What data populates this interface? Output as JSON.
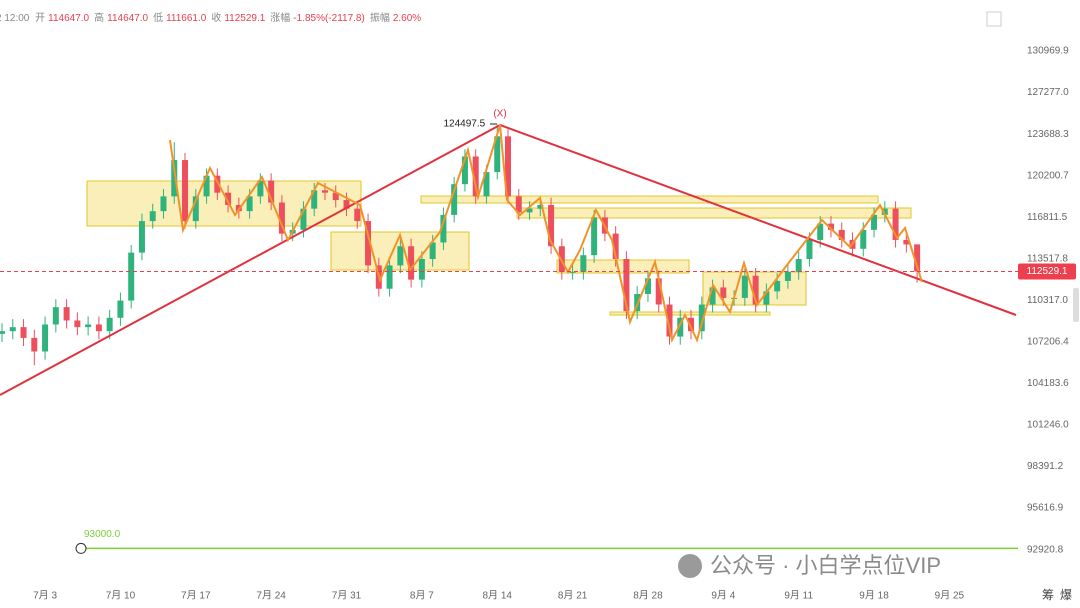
{
  "header": {
    "time": "2 12:00",
    "items": [
      {
        "label": "开",
        "value": "114647.0"
      },
      {
        "label": "高",
        "value": "114647.0"
      },
      {
        "label": "低",
        "value": "111661.0"
      },
      {
        "label": "收",
        "value": "112529.1"
      },
      {
        "label": "涨幅",
        "value": "-1.85%(-2117.8)"
      },
      {
        "label": "振幅",
        "value": "2.60%"
      }
    ]
  },
  "watermark": "公众号 · 小白学点位VIP",
  "corner_buttons": [
    "筹",
    "爆"
  ],
  "chart_data": {
    "type": "candlestick",
    "log_scale": true,
    "grid": false,
    "up_color": "#2fb37c",
    "down_color": "#ee4f5c",
    "ylim": [
      91000,
      135650
    ],
    "yticks": [
      130969.9,
      {
        "value": 127277,
        "label": "127277.0"
      },
      123688.3,
      120200.7,
      116811.5,
      113517.8,
      {
        "value": 110317,
        "label": "110317.0"
      },
      107206.4,
      104183.6,
      {
        "value": 101246,
        "label": "101246.0"
      },
      98391.2,
      95616.9,
      92920.8
    ],
    "categories": [
      null,
      null,
      null,
      null,
      "7月 3",
      null,
      null,
      null,
      null,
      null,
      null,
      "7月 10",
      null,
      null,
      null,
      null,
      null,
      null,
      "7月 17",
      null,
      null,
      null,
      null,
      null,
      null,
      "7月 24",
      null,
      null,
      null,
      null,
      null,
      null,
      "7月 31",
      null,
      null,
      null,
      null,
      null,
      null,
      "8月 7",
      null,
      null,
      null,
      null,
      null,
      null,
      "8月 14",
      null,
      null,
      null,
      null,
      null,
      null,
      "8月 21",
      null,
      null,
      null,
      null,
      null,
      null,
      "8月 28",
      null,
      null,
      null,
      null,
      null,
      null,
      "9月 4",
      null,
      null,
      null,
      null,
      null,
      null,
      "9月 11",
      null,
      null,
      null,
      null,
      null,
      null,
      "9月 18",
      null,
      null,
      null,
      null,
      null,
      null,
      "9月 25",
      null,
      null,
      null,
      null,
      null,
      null
    ],
    "open": [
      107800,
      108000,
      108300,
      107500,
      106500,
      108500,
      109800,
      108800,
      108300,
      108500,
      108000,
      109000,
      110300,
      114000,
      116500,
      117300,
      118500,
      121500,
      116500,
      118500,
      120200,
      118800,
      117800,
      117300,
      118500,
      119800,
      118000,
      115500,
      115800,
      117500,
      119000,
      118800,
      118200,
      117500,
      116500,
      113000,
      111200,
      113000,
      114500,
      111900,
      113500,
      114800,
      117000,
      119500,
      121800,
      118500,
      120500,
      123500,
      118500,
      117200,
      117500,
      117800,
      114500,
      112500,
      112500,
      113800,
      116800,
      115500,
      113500,
      109500,
      110800,
      112000,
      110000,
      107600,
      109000,
      108000,
      110000,
      111300,
      110500,
      110500,
      112200,
      110000,
      111000,
      111800,
      112500,
      113500,
      115000,
      116300,
      115800,
      115000,
      114300,
      115800,
      117000,
      117500,
      115000,
      114647,
      null,
      null,
      null,
      null,
      null,
      null,
      null,
      null,
      null
    ],
    "high": [
      108600,
      108900,
      108900,
      108100,
      109100,
      110400,
      110400,
      109400,
      109100,
      109100,
      109600,
      110900,
      114600,
      117100,
      117900,
      119100,
      123000,
      122100,
      119100,
      120800,
      120800,
      119400,
      118400,
      119100,
      120400,
      120400,
      118600,
      116400,
      118100,
      119600,
      119600,
      119400,
      118800,
      118100,
      117100,
      113600,
      113600,
      115100,
      115100,
      114100,
      115400,
      117600,
      120100,
      122400,
      122400,
      121100,
      124497.5,
      124100,
      119100,
      118100,
      118400,
      118400,
      115100,
      113100,
      114400,
      117400,
      117400,
      116100,
      114100,
      111400,
      112600,
      112600,
      110600,
      109600,
      109600,
      110600,
      111900,
      111900,
      111100,
      112800,
      112800,
      111600,
      112400,
      113100,
      114100,
      115600,
      116900,
      116900,
      116400,
      115600,
      116400,
      117600,
      118100,
      118100,
      115600,
      114647,
      null,
      null,
      null,
      null,
      null,
      null,
      null,
      null,
      null
    ],
    "low": [
      107200,
      107400,
      106900,
      105500,
      105900,
      107900,
      108200,
      107700,
      107700,
      107400,
      107400,
      108400,
      109700,
      113400,
      115900,
      116700,
      117900,
      115900,
      115900,
      117900,
      118200,
      117200,
      116700,
      116700,
      117900,
      117400,
      114900,
      114900,
      115200,
      116900,
      118200,
      117600,
      116900,
      115900,
      112400,
      110600,
      110600,
      112400,
      111300,
      111300,
      112900,
      114200,
      116400,
      118900,
      117900,
      117900,
      119900,
      117900,
      116600,
      116600,
      116900,
      113900,
      111900,
      111900,
      111900,
      113200,
      114900,
      112900,
      108900,
      108900,
      110200,
      109400,
      107000,
      107000,
      107400,
      107400,
      109400,
      109900,
      109900,
      109900,
      109400,
      109400,
      110400,
      111200,
      111900,
      112900,
      114400,
      115200,
      114400,
      113700,
      113700,
      115200,
      116400,
      114400,
      114000,
      111661,
      null,
      null,
      null,
      null,
      null,
      null,
      null,
      null,
      null
    ],
    "close": [
      108000,
      108300,
      107500,
      106500,
      108500,
      109800,
      108800,
      108300,
      108500,
      108000,
      109000,
      110300,
      114000,
      116500,
      117300,
      118500,
      121500,
      116500,
      118500,
      120200,
      118800,
      117800,
      117300,
      118500,
      119800,
      118000,
      115500,
      115800,
      117500,
      119000,
      118800,
      118200,
      117500,
      116500,
      113000,
      111200,
      113000,
      114500,
      111900,
      113500,
      114800,
      117000,
      119500,
      121800,
      118500,
      120500,
      123500,
      118500,
      117200,
      117500,
      117800,
      114500,
      112500,
      112500,
      113800,
      116800,
      115500,
      113500,
      109500,
      110800,
      112000,
      110000,
      107600,
      109000,
      108000,
      110000,
      111300,
      110500,
      110500,
      112200,
      110000,
      111000,
      111800,
      112500,
      113500,
      115000,
      116300,
      115800,
      115000,
      114300,
      115800,
      117000,
      117500,
      115000,
      114647,
      112529.1,
      null,
      null,
      null,
      null,
      null,
      null,
      null,
      null,
      null
    ],
    "last_price": 112529.1,
    "peak_marker": "(X)",
    "alert_line": {
      "value": 93000,
      "label": "93000.0",
      "color": "#7ccf3a"
    }
  }
}
